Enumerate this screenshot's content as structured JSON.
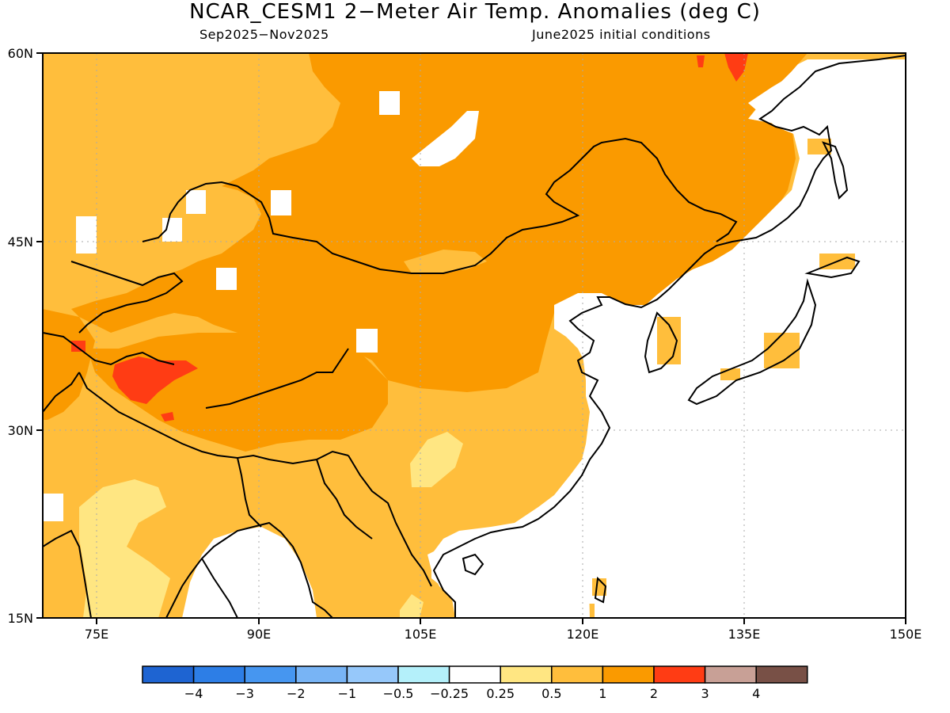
{
  "title": "NCAR_CESM1 2−Meter Air Temp. Anomalies (deg C)",
  "subtitle_left": "Sep2025−Nov2025",
  "subtitle_right": "June2025 initial conditions",
  "map": {
    "lon_range": [
      70,
      150
    ],
    "lat_range": [
      15,
      60
    ],
    "lon_ticks": [
      "75E",
      "90E",
      "105E",
      "120E",
      "135E",
      "150E"
    ],
    "lat_ticks": [
      "60N",
      "45N",
      "30N",
      "15N"
    ],
    "gridlines": true
  },
  "legend": {
    "colors": [
      "#1e64d2",
      "#2d7ee6",
      "#4696f0",
      "#78b4f5",
      "#96c8fa",
      "#b4f0fa",
      "#ffffff",
      "#ffe682",
      "#ffbe3c",
      "#fa9a00",
      "#ff3c14",
      "#c8a096",
      "#785046"
    ],
    "labels": [
      "−4",
      "−3",
      "−2",
      "−1",
      "−0.5",
      "−0.25",
      "0.25",
      "0.5",
      "1",
      "2",
      "3",
      "4"
    ]
  },
  "colors": {
    "anomaly_0_5_to_1": "#ffbe3c",
    "anomaly_1_to_2": "#fa9a00",
    "anomaly_2_to_3": "#ff3c14",
    "anomaly_0_25_to_0_5": "#ffe682"
  }
}
